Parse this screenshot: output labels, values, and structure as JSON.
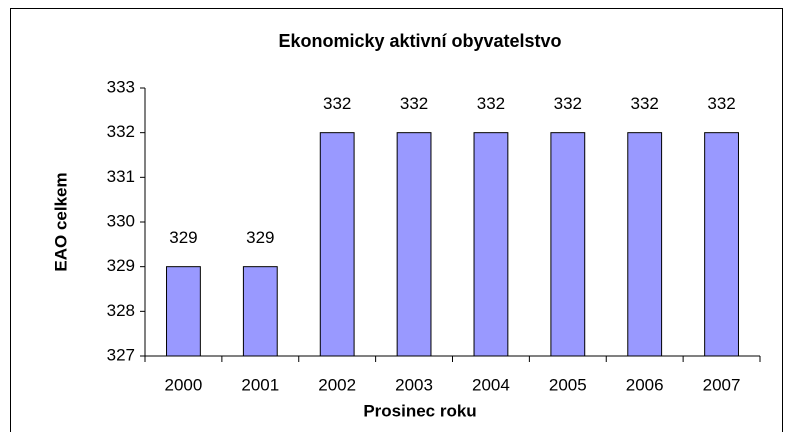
{
  "chart_data": {
    "type": "bar",
    "title": "Ekonomicky aktivní obyvatelstvo",
    "x_label": "Prosinec roku",
    "y_label": "EAO celkem",
    "categories": [
      "2000",
      "2001",
      "2002",
      "2003",
      "2004",
      "2005",
      "2006",
      "2007"
    ],
    "values": [
      329,
      329,
      332,
      332,
      332,
      332,
      332,
      332
    ],
    "color": "#9999ff",
    "ylim": [
      327,
      333
    ],
    "yticks": [
      327,
      328,
      329,
      330,
      331,
      332,
      333
    ],
    "grid": false
  }
}
